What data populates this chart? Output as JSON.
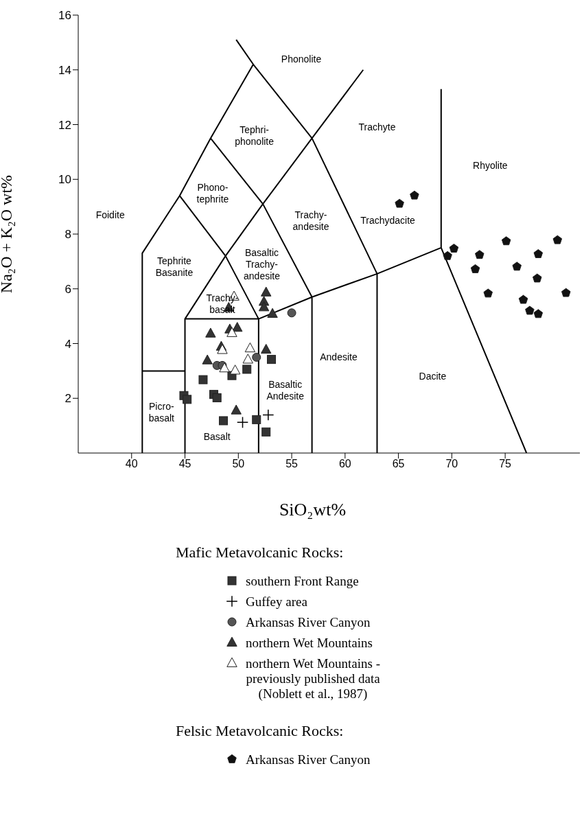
{
  "chart_data": {
    "type": "scatter",
    "xlabel": "SiO₂wt%",
    "ylabel": "Na₂O + K₂O wt%",
    "xlim": [
      35,
      82
    ],
    "ylim": [
      0,
      16
    ],
    "xticks": [
      40,
      45,
      50,
      55,
      60,
      65,
      70,
      75
    ],
    "yticks": [
      2,
      4,
      6,
      8,
      10,
      12,
      14,
      16
    ],
    "grid": false,
    "legend": "bottom",
    "series": [
      {
        "type": "line",
        "color": "#000000",
        "marker": "none",
        "x": [
          41,
          41,
          44.5,
          47.4,
          51.4,
          null,
          49.8,
          51.4,
          56.9,
          63,
          63,
          null,
          44.5,
          48.8,
          51.9,
          51.9,
          null,
          47.4,
          52.3,
          56.9,
          56.9,
          null,
          48.8,
          52.3,
          56.9,
          61.7,
          null,
          45,
          45,
          48.8,
          null,
          45,
          51.9,
          null,
          41,
          45,
          null,
          51.9,
          56.9,
          63,
          69,
          77,
          null,
          69,
          69
        ],
        "values": [
          0,
          7.3,
          9.4,
          11.5,
          14.2,
          null,
          15.1,
          14.2,
          11.5,
          6.55,
          0,
          null,
          9.4,
          7.2,
          4.9,
          0,
          null,
          11.5,
          9.1,
          5.7,
          0,
          null,
          7.2,
          9.1,
          11.5,
          14,
          null,
          0,
          4.9,
          7.2,
          null,
          4.9,
          4.9,
          null,
          3,
          3,
          null,
          4.9,
          5.7,
          6.55,
          7.5,
          0,
          null,
          7.5,
          13.3
        ]
      },
      {
        "name": "southern Front Range",
        "color": "#333333",
        "marker": "square",
        "x": [
          44.9,
          45.2,
          46.7,
          47.7,
          48,
          48.6,
          51.7,
          52.6,
          50.8,
          49.4,
          53.1
        ],
        "values": [
          2.1,
          1.96,
          2.68,
          2.14,
          2.02,
          1.18,
          1.22,
          0.77,
          3.06,
          2.83,
          3.42
        ]
      },
      {
        "name": "Guffey area",
        "color": "#000000",
        "marker": "cross",
        "x": [
          50.4,
          52.8
        ],
        "values": [
          1.12,
          1.39
        ]
      },
      {
        "name": "Arkansas River Canyon",
        "color": "#555555",
        "marker": "circle",
        "x": [
          55,
          51.7,
          48,
          48.5
        ],
        "values": [
          5.12,
          3.5,
          3.2,
          3.2
        ]
      },
      {
        "name": "northern Wet Mountains",
        "color": "#333333",
        "marker": "triangle",
        "x": [
          47.4,
          49.9,
          47.1,
          52.6,
          49.8,
          49.1,
          48.4,
          49.2,
          52.6,
          52.4,
          52.4,
          53.2
        ],
        "values": [
          4.37,
          4.58,
          3.39,
          3.78,
          1.56,
          5.31,
          3.89,
          4.52,
          5.87,
          5.53,
          5.33,
          5.09
        ]
      },
      {
        "name": "northern Wet Mountains -\npreviously published data\n(Noblett et al., 1987)",
        "color": "#ffffff",
        "marker": "triangle",
        "x": [
          49.6,
          49.4,
          48.5,
          51.1,
          50.9,
          48.7,
          49.7
        ],
        "values": [
          5.72,
          4.39,
          3.77,
          3.83,
          3.42,
          3.1,
          3.02
        ]
      },
      {
        "name": "Arkansas River Canyon",
        "color": "#111111",
        "x": [
          65.1,
          66.5,
          70.2,
          69.6,
          72.6,
          72.2,
          75.1,
          79.9,
          78.1,
          76.1,
          78,
          73.4,
          80.7,
          76.7,
          77.3,
          78.1
        ],
        "values": [
          9.11,
          9.41,
          7.47,
          7.2,
          7.24,
          6.72,
          7.74,
          7.78,
          7.27,
          6.81,
          6.38,
          5.83,
          5.85,
          5.6,
          5.2,
          5.08
        ]
      }
    ],
    "annotations": [
      "Mafic Metavolcanic Rocks:",
      "Felsic Metavolcanic Rocks:",
      "Phonolite",
      "Tephri-\nphonolite",
      "Trachyte",
      "Rhyolite",
      "Phono-\ntephrite",
      "Foidite",
      "Trachy-\nandesite",
      "Trachydacite",
      "Tephrite\nBasanite",
      "Basaltic\nTrachy-\nandesite",
      "Trachy-\nbasalt",
      "Andesite",
      "Dacite",
      "Basaltic\nAndesite",
      "Picro-\nbasalt",
      "Basalt"
    ]
  }
}
